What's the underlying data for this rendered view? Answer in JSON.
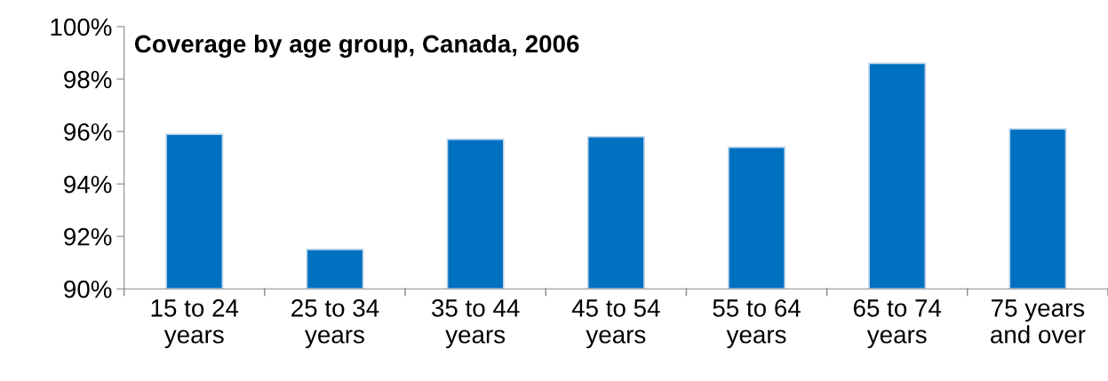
{
  "chart_data": {
    "type": "bar",
    "title": "Coverage by age group, Canada, 2006",
    "categories": [
      "15 to 24\nyears",
      "25 to 34\nyears",
      "35 to 44\nyears",
      "45 to 54\nyears",
      "55 to 64\nyears",
      "65 to 74\nyears",
      "75 years\nand over"
    ],
    "values": [
      95.9,
      91.5,
      95.7,
      95.8,
      95.4,
      98.6,
      96.1
    ],
    "color": "#0070c0",
    "ylim": [
      90,
      100
    ],
    "yticks": [
      {
        "value": 90,
        "label": "90%"
      },
      {
        "value": 92,
        "label": "92%"
      },
      {
        "value": 94,
        "label": "94%"
      },
      {
        "value": 96,
        "label": "96%"
      },
      {
        "value": 98,
        "label": "98%"
      },
      {
        "value": 100,
        "label": "100%"
      }
    ],
    "grid": false,
    "legend": false
  }
}
